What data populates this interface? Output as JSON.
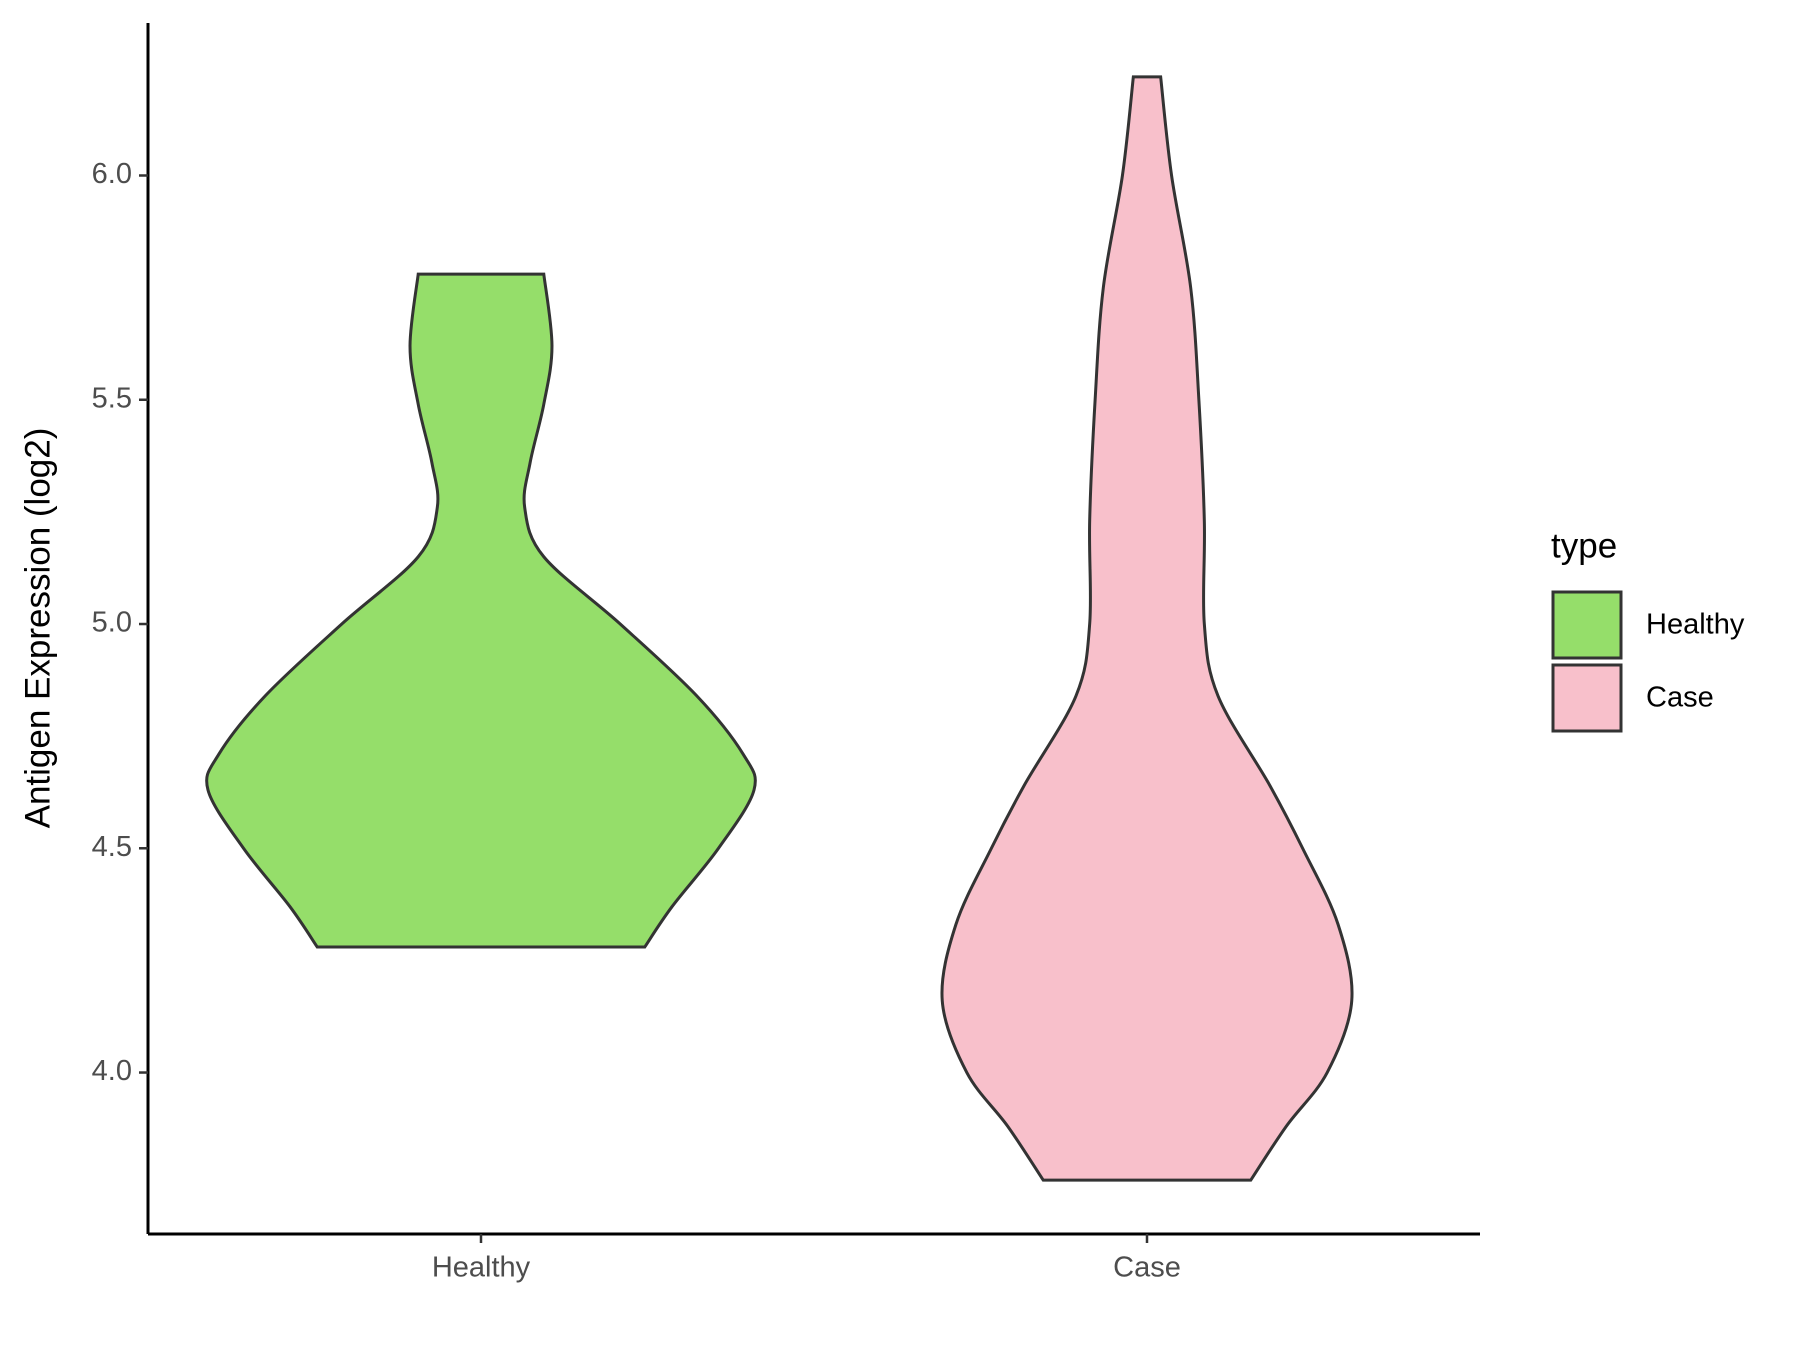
{
  "chart_data": {
    "type": "violin",
    "y_label": "Antigen Expression (log2)",
    "categories": [
      "Healthy",
      "Case"
    ],
    "legend_title": "type",
    "legend": "right",
    "ylim": [
      3.64,
      6.34
    ],
    "yticks": [
      {
        "value": 4.0,
        "label": "4.0"
      },
      {
        "value": 4.5,
        "label": "4.5"
      },
      {
        "value": 5.0,
        "label": "5.0"
      },
      {
        "value": 5.5,
        "label": "5.5"
      },
      {
        "value": 6.0,
        "label": "6.0"
      }
    ],
    "series": [
      {
        "name": "Healthy",
        "color": "#95de6a",
        "y": [
          5.78,
          5.62,
          5.49,
          5.36,
          5.26,
          5.15,
          5.0,
          4.84,
          4.71,
          4.63,
          4.5,
          4.37,
          4.28
        ],
        "width": [
          0.23,
          0.26,
          0.23,
          0.18,
          0.16,
          0.23,
          0.51,
          0.79,
          0.96,
          1.0,
          0.87,
          0.7,
          0.6
        ]
      },
      {
        "name": "Case",
        "color": "#f8c0cb",
        "y": [
          6.22,
          6.0,
          5.75,
          5.5,
          5.23,
          5.0,
          4.84,
          4.64,
          4.5,
          4.33,
          4.16,
          4.0,
          3.88,
          3.76
        ],
        "width": [
          0.05,
          0.09,
          0.16,
          0.19,
          0.21,
          0.21,
          0.26,
          0.45,
          0.57,
          0.7,
          0.75,
          0.66,
          0.51,
          0.38
        ]
      }
    ]
  }
}
